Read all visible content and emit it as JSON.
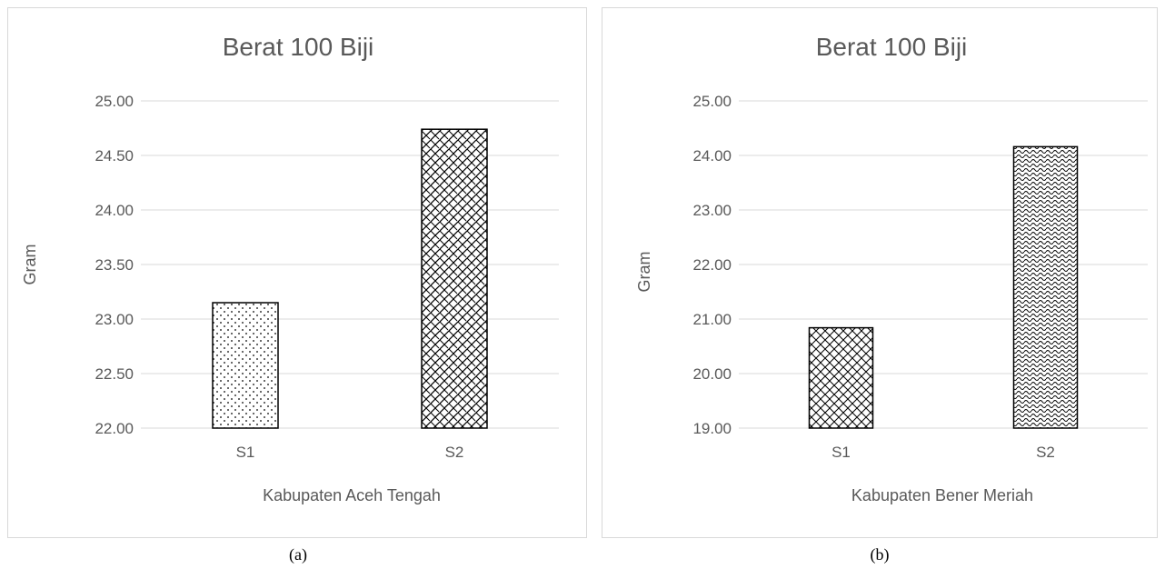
{
  "chart_data": [
    {
      "type": "bar",
      "title": "Berat 100 Biji",
      "xlabel": "Kabupaten Aceh Tengah",
      "ylabel": "Gram",
      "categories": [
        "S1",
        "S2"
      ],
      "values": [
        23.15,
        24.74
      ],
      "ylim": [
        22.0,
        25.0
      ],
      "yticks": [
        "22.00",
        "22.50",
        "23.00",
        "23.50",
        "24.00",
        "24.50",
        "25.00"
      ],
      "grid": true,
      "legend": "none",
      "patterns": [
        "dots",
        "diagonal-brick"
      ],
      "caption": "(a)"
    },
    {
      "type": "bar",
      "title": "Berat 100 Biji",
      "xlabel": "Kabupaten Bener Meriah",
      "ylabel": "Gram",
      "categories": [
        "S1",
        "S2"
      ],
      "values": [
        20.84,
        24.16
      ],
      "ylim": [
        19.0,
        25.0
      ],
      "yticks": [
        "19.00",
        "20.00",
        "21.00",
        "22.00",
        "23.00",
        "24.00",
        "25.00"
      ],
      "grid": true,
      "legend": "none",
      "patterns": [
        "crosshatch",
        "wave"
      ],
      "caption": "(b)"
    }
  ],
  "colors": {
    "gridline": "#d9d9d9",
    "text": "#595959",
    "bar_stroke": "#000000"
  }
}
